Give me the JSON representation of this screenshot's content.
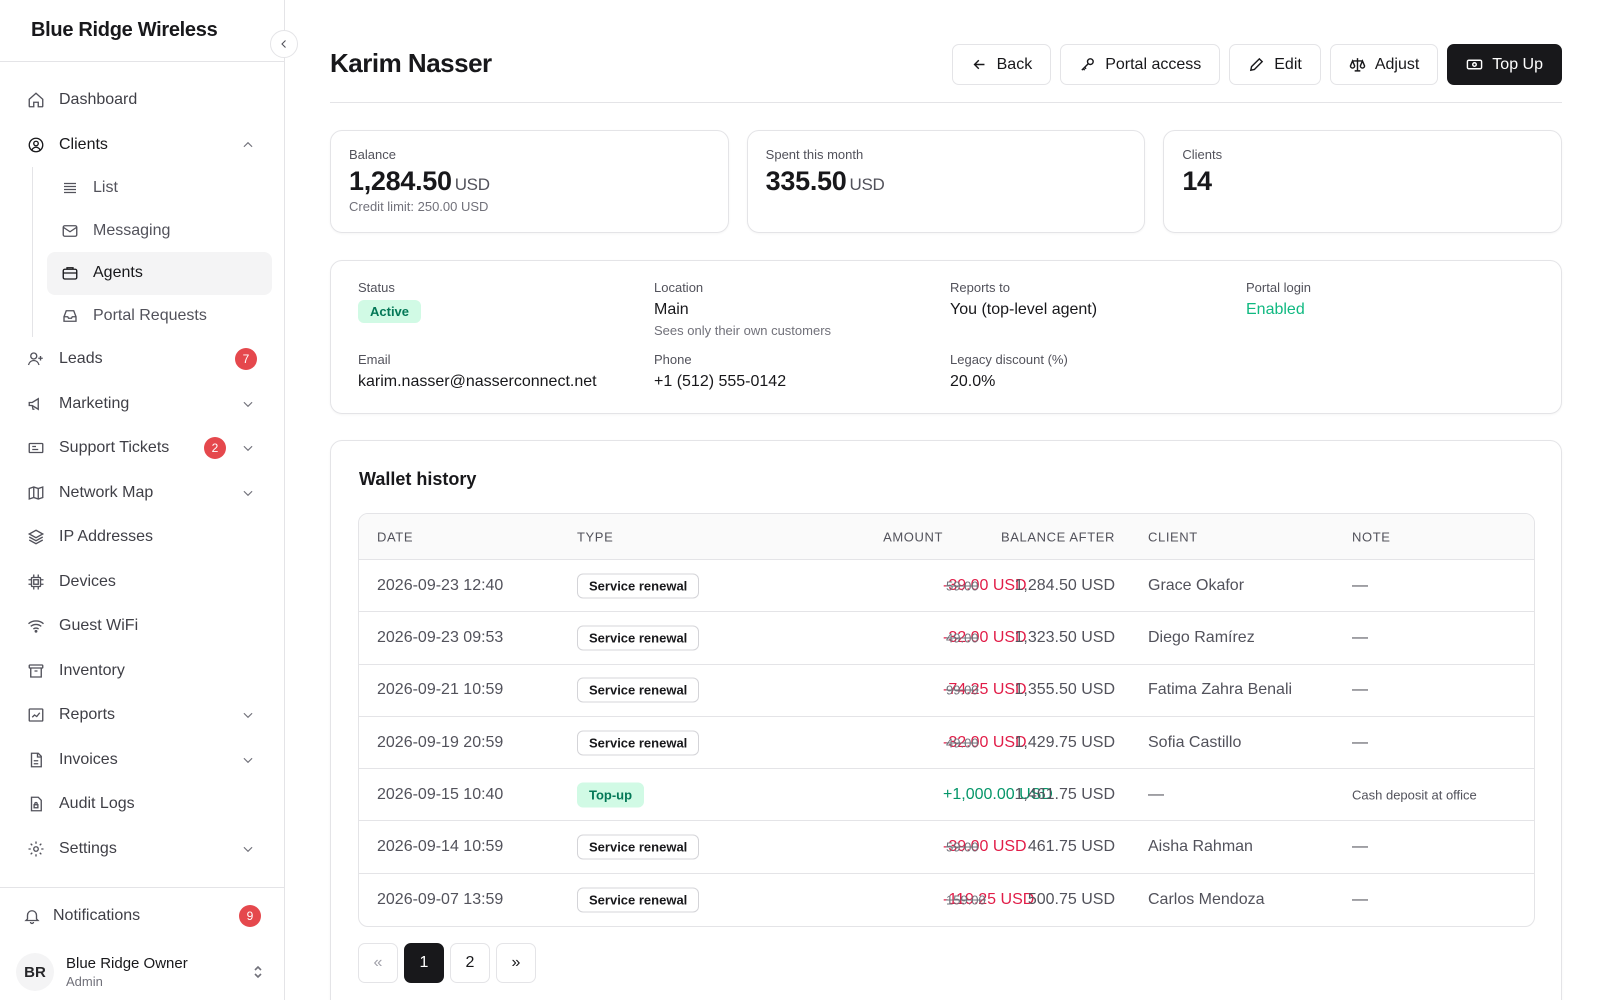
{
  "brand": "Blue Ridge Wireless",
  "sidebar": {
    "items": [
      {
        "label": "Dashboard",
        "icon": "home-icon"
      },
      {
        "label": "Clients",
        "icon": "user-circle-icon"
      },
      {
        "label": "Leads",
        "icon": "user-plus-icon",
        "badge": "7"
      },
      {
        "label": "Marketing",
        "icon": "megaphone-icon"
      },
      {
        "label": "Support Tickets",
        "icon": "ticket-icon",
        "badge": "2"
      },
      {
        "label": "Network Map",
        "icon": "map-icon"
      },
      {
        "label": "IP Addresses",
        "icon": "layers-icon"
      },
      {
        "label": "Devices",
        "icon": "cpu-icon"
      },
      {
        "label": "Guest WiFi",
        "icon": "wifi-icon"
      },
      {
        "label": "Inventory",
        "icon": "archive-icon"
      },
      {
        "label": "Reports",
        "icon": "chart-icon"
      },
      {
        "label": "Invoices",
        "icon": "file-icon"
      },
      {
        "label": "Audit Logs",
        "icon": "file-lock-icon"
      },
      {
        "label": "Settings",
        "icon": "gear-icon"
      }
    ],
    "clients_sub": [
      {
        "label": "List",
        "icon": "list-icon"
      },
      {
        "label": "Messaging",
        "icon": "mail-icon"
      },
      {
        "label": "Agents",
        "icon": "briefcase-icon"
      },
      {
        "label": "Portal Requests",
        "icon": "inbox-icon"
      }
    ],
    "notifications": {
      "label": "Notifications",
      "badge": "9"
    },
    "user": {
      "initials": "BR",
      "name": "Blue Ridge Owner",
      "role": "Admin"
    }
  },
  "header": {
    "title": "Karim Nasser",
    "actions": {
      "back": "Back",
      "portal": "Portal access",
      "edit": "Edit",
      "adjust": "Adjust",
      "topup": "Top Up"
    }
  },
  "stats": {
    "balance": {
      "label": "Balance",
      "value": "1,284.50",
      "unit": "USD",
      "sub": "Credit limit: 250.00 USD"
    },
    "spent": {
      "label": "Spent this month",
      "value": "335.50",
      "unit": "USD"
    },
    "clients": {
      "label": "Clients",
      "value": "14"
    }
  },
  "info": {
    "status": {
      "label": "Status",
      "value": "Active"
    },
    "location": {
      "label": "Location",
      "value": "Main",
      "sub": "Sees only their own customers"
    },
    "reports_to": {
      "label": "Reports to",
      "value": "You (top-level agent)"
    },
    "portal_login": {
      "label": "Portal login",
      "value": "Enabled"
    },
    "email": {
      "label": "Email",
      "value": "karim.nasser@nasserconnect.net"
    },
    "phone": {
      "label": "Phone",
      "value": "+1 (512) 555-0142"
    },
    "discount": {
      "label": "Legacy discount (%)",
      "value": "20.0%"
    }
  },
  "wallet": {
    "title": "Wallet history",
    "columns": {
      "date": "DATE",
      "type": "TYPE",
      "amount": "AMOUNT",
      "balance": "BALANCE AFTER",
      "client": "CLIENT",
      "note": "NOTE"
    },
    "rows": [
      {
        "date": "2026-09-23 12:40",
        "type": "Service renewal",
        "kind": "renewal",
        "amount": "-39.00 USD",
        "orig": "59.00",
        "balance": "1,284.50 USD",
        "client": "Grace Okafor",
        "note": "—"
      },
      {
        "date": "2026-09-23 09:53",
        "type": "Service renewal",
        "kind": "renewal",
        "amount": "-32.00 USD",
        "orig": "49.00",
        "balance": "1,323.50 USD",
        "client": "Diego Ramírez",
        "note": "—"
      },
      {
        "date": "2026-09-21 10:59",
        "type": "Service renewal",
        "kind": "renewal",
        "amount": "-74.25 USD",
        "orig": "99.00",
        "balance": "1,355.50 USD",
        "client": "Fatima Zahra Benali",
        "note": "—"
      },
      {
        "date": "2026-09-19 20:59",
        "type": "Service renewal",
        "kind": "renewal",
        "amount": "-32.00 USD",
        "orig": "49.00",
        "balance": "1,429.75 USD",
        "client": "Sofia Castillo",
        "note": "—"
      },
      {
        "date": "2026-09-15 10:40",
        "type": "Top-up",
        "kind": "topup",
        "amount": "+1,000.00 USD",
        "orig": "",
        "balance": "1,461.75 USD",
        "client": "—",
        "note": "Cash deposit at office"
      },
      {
        "date": "2026-09-14 10:59",
        "type": "Service renewal",
        "kind": "renewal",
        "amount": "-39.00 USD",
        "orig": "59.00",
        "balance": "461.75 USD",
        "client": "Aisha Rahman",
        "note": "—"
      },
      {
        "date": "2026-09-07 13:59",
        "type": "Service renewal",
        "kind": "renewal",
        "amount": "-119.25 USD",
        "orig": "159.00",
        "balance": "500.75 USD",
        "client": "Carlos Mendoza",
        "note": "—"
      }
    ],
    "pagination": {
      "prev": "«",
      "pages": [
        "1",
        "2"
      ],
      "next": "»",
      "current": "1"
    }
  },
  "colors": {
    "accent": "#18181b",
    "negative": "#e11d48",
    "positive": "#059669",
    "badge": "#e5484d",
    "active_pill": "#d1fae5"
  }
}
